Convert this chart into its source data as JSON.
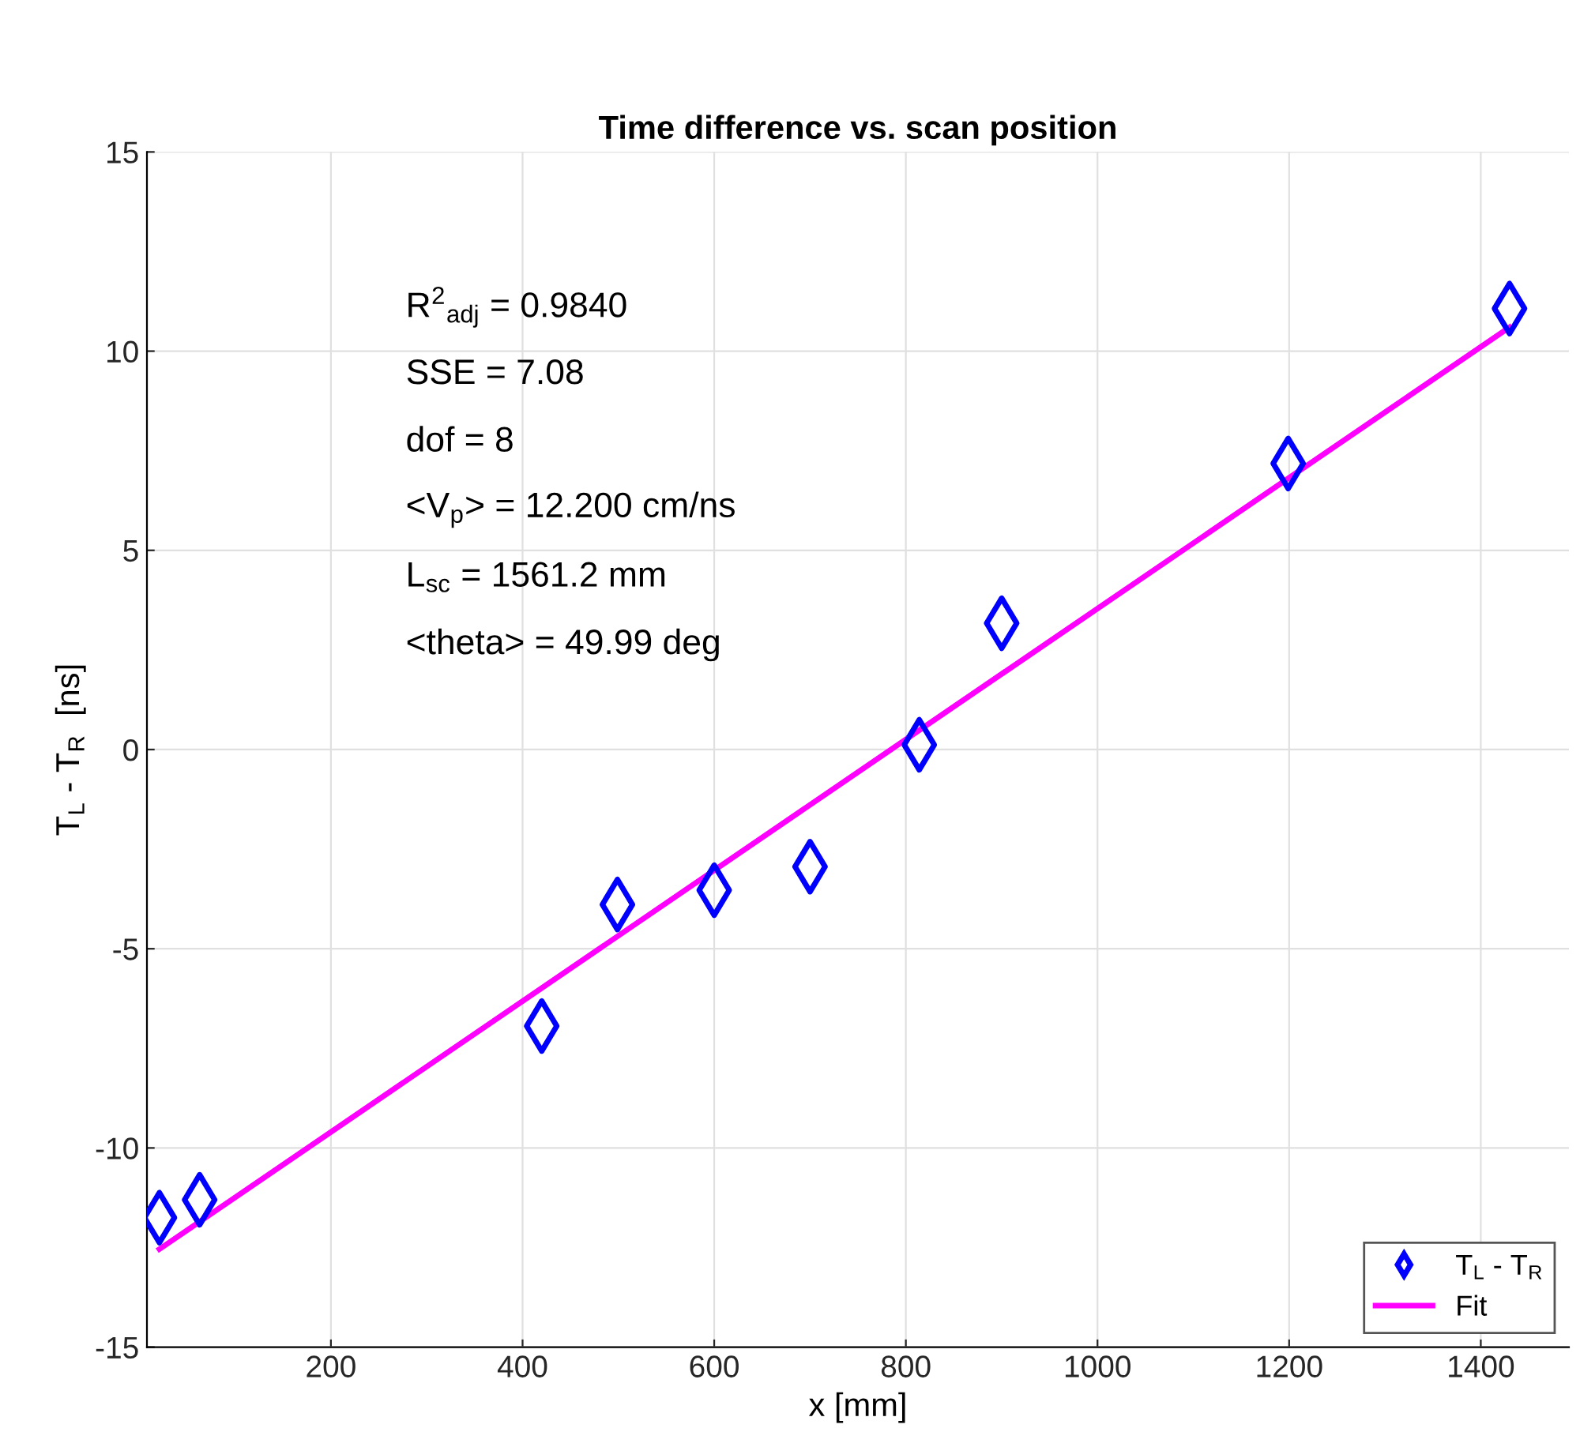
{
  "chart_data": {
    "type": "scatter",
    "title": "Time difference vs. scan position",
    "xlabel": "x [mm]",
    "ylabel": "T$_{L}$ - T$_{R}$  [ns]",
    "xlim": [
      8,
      1492
    ],
    "xticks": [
      200,
      400,
      600,
      800,
      1000,
      1200,
      1400
    ],
    "ylim": [
      -15,
      15
    ],
    "yticks": [
      -15,
      -10,
      -5,
      0,
      5,
      10,
      15
    ],
    "grid": true,
    "legend": "bottom right",
    "marker": "diamond",
    "series": [
      {
        "name": "T$_{L}$ - T$_{R}$",
        "color": "#0000ff",
        "x": [
          21,
          63,
          420,
          499,
          600,
          700,
          814,
          900,
          1199,
          1430
        ],
        "values": [
          -11.75,
          -11.3,
          -6.94,
          -3.89,
          -3.53,
          -2.94,
          0.12,
          3.17,
          7.18,
          11.07
        ]
      },
      {
        "name": "Fit",
        "type": "line",
        "color": "#ff00ff",
        "marker": "none",
        "line_style": "solid",
        "x": [
          21,
          1430
        ],
        "values": [
          -12.54,
          10.6
        ]
      }
    ],
    "annotations": [
      "R$^{2}$$_{adj}$ = 0.9840",
      "SSE = 7.08",
      "dof = 8",
      "<V$_{p}$> = 12.200 cm/ns",
      "L$_{sc}$ = 1561.2 mm",
      "<theta> = 49.99 deg"
    ]
  }
}
